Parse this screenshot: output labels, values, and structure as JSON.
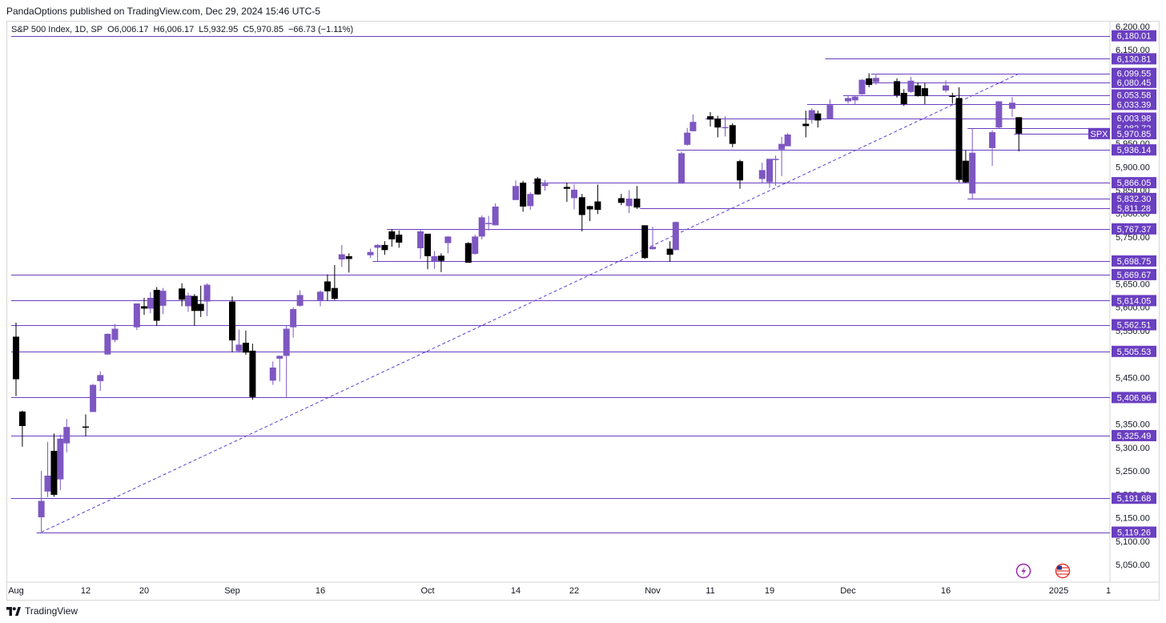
{
  "publisher_line": "PandaOptions published on TradingView.com, Dec 29, 2024 15:46 UTC-5",
  "legend": {
    "symbol": "S&P 500 Index, 1D, SP",
    "open": "O6,006.17",
    "high": "H6,006.17",
    "low": "L5,932.95",
    "close": "C5,970.85",
    "change": "−66.73 (−1.11%)"
  },
  "brand": "TradingView",
  "colors": {
    "up": "#7e57c2",
    "down": "#000000",
    "level_line": "#6a3fc1",
    "label_bg": "#6a3fc1",
    "trend": "#5b3fd1",
    "grid": "#d6d6d6",
    "axis_text": "#131722"
  },
  "chart_data": {
    "type": "candlestick",
    "symbol_tag": "SPX",
    "ylim": [
      5025,
      6215
    ],
    "y_ticks": [
      "6,200.00",
      "6,150.00",
      "5,950.00",
      "5,900.00",
      "5,850.00",
      "5,800.00",
      "5,750.00",
      "5,650.00",
      "5,600.00",
      "5,550.00",
      "5,450.00",
      "5,350.00",
      "5,300.00",
      "5,250.00",
      "5,200.00",
      "5,150.00",
      "5,100.00",
      "5,050.00"
    ],
    "x_ticks": [
      {
        "label": "Aug",
        "date": "2024-08-01"
      },
      {
        "label": "12",
        "date": "2024-08-12"
      },
      {
        "label": "20",
        "date": "2024-08-20"
      },
      {
        "label": "Sep",
        "date": "2024-09-03"
      },
      {
        "label": "16",
        "date": "2024-09-16"
      },
      {
        "label": "Oct",
        "date": "2024-10-01"
      },
      {
        "label": "14",
        "date": "2024-10-14"
      },
      {
        "label": "22",
        "date": "2024-10-22"
      },
      {
        "label": "Nov",
        "date": "2024-11-01"
      },
      {
        "label": "11",
        "date": "2024-11-11"
      },
      {
        "label": "19",
        "date": "2024-11-19"
      },
      {
        "label": "Dec",
        "date": "2024-12-02"
      },
      {
        "label": "16",
        "date": "2024-12-16"
      },
      {
        "label": "2025",
        "date": "2025-01-02"
      },
      {
        "label": "1",
        "date": "2025-01-06"
      }
    ],
    "levels": [
      {
        "label": "6,180.01",
        "value": 6180.01,
        "from": "2024-08-01"
      },
      {
        "label": "6,130.81",
        "value": 6130.81,
        "from": "2024-11-29"
      },
      {
        "label": "6,099.55",
        "value": 6099.55,
        "from": "2024-12-06"
      },
      {
        "label": "6,080.45",
        "value": 6080.45,
        "from": "2024-12-05"
      },
      {
        "label": "6,053.58",
        "value": 6053.58,
        "from": "2024-12-02"
      },
      {
        "label": "6,033.39",
        "value": 6033.39,
        "from": "2024-11-26"
      },
      {
        "label": "6,003.98",
        "value": 6003.98,
        "from": "2024-11-11"
      },
      {
        "label": "5,982.72",
        "value": 5982.72,
        "from": "2024-12-20"
      },
      {
        "label": "5,970.85",
        "value": 5970.85,
        "from": "2024-12-27"
      },
      {
        "label": "5,936.14",
        "value": 5936.14,
        "from": "2024-11-06"
      },
      {
        "label": "5,866.05",
        "value": 5866.05,
        "from": "2024-10-17"
      },
      {
        "label": "5,832.30",
        "value": 5832.3,
        "from": "2024-12-20"
      },
      {
        "label": "5,811.28",
        "value": 5811.28,
        "from": "2024-10-31"
      },
      {
        "label": "5,767.37",
        "value": 5767.37,
        "from": "2024-09-26"
      },
      {
        "label": "5,698.75",
        "value": 5698.75,
        "from": "2024-09-24"
      },
      {
        "label": "5,669.67",
        "value": 5669.67,
        "from": "2024-08-01"
      },
      {
        "label": "5,614.05",
        "value": 5614.05,
        "from": "2024-08-01"
      },
      {
        "label": "5,562.51",
        "value": 5562.51,
        "from": "2024-08-01"
      },
      {
        "label": "5,505.53",
        "value": 5505.53,
        "from": "2024-08-01"
      },
      {
        "label": "5,406.96",
        "value": 5406.96,
        "from": "2024-08-01"
      },
      {
        "label": "5,325.49",
        "value": 5325.49,
        "from": "2024-08-01"
      },
      {
        "label": "5,191.68",
        "value": 5191.68,
        "from": "2024-08-01"
      },
      {
        "label": "5,119.26",
        "value": 5119.26,
        "from": "2024-08-05"
      }
    ],
    "trendline": {
      "start": {
        "date": "2024-08-05",
        "value": 5119.26
      },
      "end": {
        "date": "2024-12-26",
        "value": 6085
      }
    },
    "candles": [
      [
        "2024-08-01",
        5537,
        5567,
        5410,
        5446
      ],
      [
        "2024-08-02",
        5377,
        5379,
        5302,
        5346
      ],
      [
        "2024-08-05",
        5151,
        5250,
        5119,
        5186
      ],
      [
        "2024-08-06",
        5206,
        5312,
        5194,
        5240
      ],
      [
        "2024-08-07",
        5293,
        5330,
        5195,
        5199
      ],
      [
        "2024-08-08",
        5232,
        5328,
        5209,
        5319
      ],
      [
        "2024-08-09",
        5309,
        5361,
        5290,
        5344
      ],
      [
        "2024-08-12",
        5345,
        5371,
        5324,
        5344
      ],
      [
        "2024-08-13",
        5376,
        5436,
        5376,
        5434
      ],
      [
        "2024-08-14",
        5442,
        5463,
        5421,
        5455
      ],
      [
        "2024-08-15",
        5499,
        5544,
        5498,
        5543
      ],
      [
        "2024-08-16",
        5530,
        5564,
        5525,
        5554
      ],
      [
        "2024-08-19",
        5557,
        5608,
        5551,
        5608
      ],
      [
        "2024-08-20",
        5602,
        5620,
        5584,
        5597
      ],
      [
        "2024-08-21",
        5597,
        5632,
        5587,
        5620
      ],
      [
        "2024-08-22",
        5637,
        5643,
        5560,
        5571
      ],
      [
        "2024-08-23",
        5603,
        5641,
        5585,
        5635
      ],
      [
        "2024-08-26",
        5640,
        5651,
        5602,
        5616
      ],
      [
        "2024-08-27",
        5602,
        5631,
        5590,
        5625
      ],
      [
        "2024-08-28",
        5624,
        5628,
        5561,
        5592
      ],
      [
        "2024-08-29",
        5607,
        5646,
        5579,
        5592
      ],
      [
        "2024-08-30",
        5612,
        5651,
        5581,
        5648
      ],
      [
        "2024-09-03",
        5612,
        5623,
        5504,
        5529
      ],
      [
        "2024-09-04",
        5506,
        5552,
        5503,
        5520
      ],
      [
        "2024-09-05",
        5524,
        5550,
        5498,
        5503
      ],
      [
        "2024-09-06",
        5507,
        5522,
        5402,
        5408
      ],
      [
        "2024-09-09",
        5443,
        5484,
        5434,
        5471
      ],
      [
        "2024-09-10",
        5490,
        5497,
        5441,
        5496
      ],
      [
        "2024-09-11",
        5496,
        5560,
        5406,
        5554
      ],
      [
        "2024-09-12",
        5557,
        5600,
        5535,
        5596
      ],
      [
        "2024-09-13",
        5603,
        5636,
        5601,
        5626
      ],
      [
        "2024-09-16",
        5615,
        5636,
        5602,
        5633
      ],
      [
        "2024-09-17",
        5655,
        5670,
        5614,
        5634
      ],
      [
        "2024-09-18",
        5641,
        5690,
        5615,
        5618
      ],
      [
        "2024-09-19",
        5702,
        5733,
        5686,
        5713
      ],
      [
        "2024-09-20",
        5709,
        5715,
        5674,
        5703
      ],
      [
        "2024-09-23",
        5711,
        5725,
        5705,
        5718
      ],
      [
        "2024-09-24",
        5727,
        5735,
        5698,
        5733
      ],
      [
        "2024-09-25",
        5733,
        5741,
        5712,
        5722
      ],
      [
        "2024-09-26",
        5762,
        5767,
        5729,
        5745
      ],
      [
        "2024-09-27",
        5755,
        5764,
        5727,
        5738
      ],
      [
        "2024-09-30",
        5726,
        5765,
        5703,
        5762
      ],
      [
        "2024-10-01",
        5757,
        5757,
        5681,
        5709
      ],
      [
        "2024-10-02",
        5698,
        5720,
        5682,
        5709
      ],
      [
        "2024-10-03",
        5710,
        5715,
        5675,
        5699
      ],
      [
        "2024-10-04",
        5737,
        5752,
        5715,
        5751
      ],
      [
        "2024-10-07",
        5737,
        5739,
        5696,
        5695
      ],
      [
        "2024-10-08",
        5714,
        5755,
        5712,
        5751
      ],
      [
        "2024-10-09",
        5751,
        5796,
        5745,
        5792
      ],
      [
        "2024-10-10",
        5778,
        5795,
        5764,
        5780
      ],
      [
        "2024-10-11",
        5775,
        5822,
        5775,
        5815
      ],
      [
        "2024-10-14",
        5829,
        5871,
        5829,
        5859
      ],
      [
        "2024-10-15",
        5866,
        5870,
        5804,
        5815
      ],
      [
        "2024-10-16",
        5816,
        5846,
        5808,
        5842
      ],
      [
        "2024-10-17",
        5875,
        5878,
        5840,
        5841
      ],
      [
        "2024-10-18",
        5859,
        5872,
        5849,
        5864
      ],
      [
        "2024-10-21",
        5857,
        5866,
        5825,
        5853
      ],
      [
        "2024-10-22",
        5833,
        5863,
        5809,
        5851
      ],
      [
        "2024-10-23",
        5835,
        5842,
        5762,
        5797
      ],
      [
        "2024-10-24",
        5816,
        5817,
        5784,
        5809
      ],
      [
        "2024-10-25",
        5826,
        5862,
        5799,
        5808
      ],
      [
        "2024-10-28",
        5833,
        5842,
        5818,
        5823
      ],
      [
        "2024-10-29",
        5816,
        5850,
        5801,
        5832
      ],
      [
        "2024-10-30",
        5832,
        5859,
        5810,
        5813
      ],
      [
        "2024-10-31",
        5775,
        5775,
        5703,
        5705
      ],
      [
        "2024-11-01",
        5724,
        5772,
        5723,
        5729
      ],
      [
        "2024-11-04",
        5725,
        5741,
        5697,
        5712
      ],
      [
        "2024-11-05",
        5722,
        5783,
        5722,
        5782
      ],
      [
        "2024-11-06",
        5864,
        5933,
        5864,
        5929
      ],
      [
        "2024-11-07",
        5947,
        5983,
        5945,
        5973
      ],
      [
        "2024-11-08",
        5976,
        6012,
        5976,
        5996
      ],
      [
        "2024-11-11",
        6008,
        6017,
        5986,
        6001
      ],
      [
        "2024-11-12",
        6003,
        6009,
        5963,
        5984
      ],
      [
        "2024-11-13",
        5985,
        6008,
        5965,
        5985
      ],
      [
        "2024-11-14",
        5989,
        5993,
        5942,
        5949
      ],
      [
        "2024-11-15",
        5912,
        5915,
        5853,
        5871
      ],
      [
        "2024-11-18",
        5874,
        5909,
        5866,
        5893
      ],
      [
        "2024-11-19",
        5867,
        5917,
        5855,
        5917
      ],
      [
        "2024-11-20",
        5917,
        5924,
        5860,
        5917
      ],
      [
        "2024-11-21",
        5937,
        5964,
        5880,
        5949
      ],
      [
        "2024-11-22",
        5944,
        5972,
        5944,
        5969
      ],
      [
        "2024-11-25",
        5992,
        6020,
        5963,
        5987
      ],
      [
        "2024-11-26",
        6000,
        6025,
        5992,
        6021
      ],
      [
        "2024-11-27",
        6014,
        6020,
        5984,
        5999
      ],
      [
        "2024-11-29",
        6003,
        6044,
        6003,
        6032
      ],
      [
        "2024-12-02",
        6040,
        6053,
        6035,
        6047
      ],
      [
        "2024-12-03",
        6042,
        6052,
        6034,
        6050
      ],
      [
        "2024-12-04",
        6055,
        6087,
        6054,
        6086
      ],
      [
        "2024-12-05",
        6089,
        6100,
        6070,
        6075
      ],
      [
        "2024-12-06",
        6081,
        6099,
        6075,
        6090
      ],
      [
        "2024-12-09",
        6083,
        6089,
        6048,
        6053
      ],
      [
        "2024-12-10",
        6058,
        6066,
        6030,
        6034
      ],
      [
        "2024-12-11",
        6060,
        6092,
        6058,
        6084
      ],
      [
        "2024-12-12",
        6074,
        6080,
        6050,
        6051
      ],
      [
        "2024-12-13",
        6068,
        6079,
        6034,
        6051
      ],
      [
        "2024-12-16",
        6063,
        6085,
        6059,
        6074
      ],
      [
        "2024-12-17",
        6052,
        6058,
        6035,
        6050
      ],
      [
        "2024-12-18",
        6047,
        6070,
        5867,
        5872
      ],
      [
        "2024-12-19",
        5913,
        5935,
        5866,
        5867
      ],
      [
        "2024-12-20",
        5843,
        5982,
        5832,
        5930
      ],
      [
        "2024-12-23",
        5940,
        5978,
        5902,
        5974
      ],
      [
        "2024-12-24",
        5984,
        6040,
        5982,
        6040
      ],
      [
        "2024-12-26",
        6024,
        6049,
        6007,
        6037
      ],
      [
        "2024-12-27",
        6006,
        6006,
        5933,
        5971
      ]
    ]
  }
}
